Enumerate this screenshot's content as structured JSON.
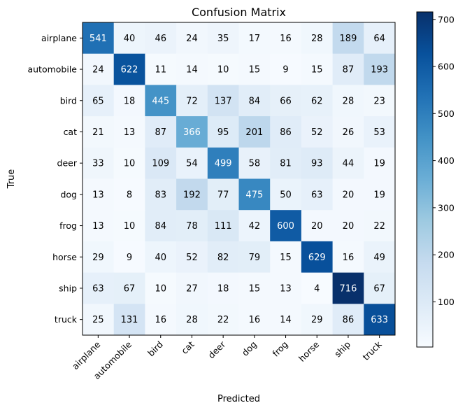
{
  "chart_data": {
    "type": "heatmap",
    "title": "Confusion Matrix",
    "xlabel": "Predicted",
    "ylabel": "True",
    "x_categories": [
      "airplane",
      "automobile",
      "bird",
      "cat",
      "deer",
      "dog",
      "frog",
      "horse",
      "ship",
      "truck"
    ],
    "y_categories": [
      "airplane",
      "automobile",
      "bird",
      "cat",
      "deer",
      "dog",
      "frog",
      "horse",
      "ship",
      "truck"
    ],
    "values": [
      [
        541,
        40,
        46,
        24,
        35,
        17,
        16,
        28,
        189,
        64
      ],
      [
        24,
        622,
        11,
        14,
        10,
        15,
        9,
        15,
        87,
        193
      ],
      [
        65,
        18,
        445,
        72,
        137,
        84,
        66,
        62,
        28,
        23
      ],
      [
        21,
        13,
        87,
        366,
        95,
        201,
        86,
        52,
        26,
        53
      ],
      [
        33,
        10,
        109,
        54,
        499,
        58,
        81,
        93,
        44,
        19
      ],
      [
        13,
        8,
        83,
        192,
        77,
        475,
        50,
        63,
        20,
        19
      ],
      [
        13,
        10,
        84,
        78,
        111,
        42,
        600,
        20,
        20,
        22
      ],
      [
        29,
        9,
        40,
        52,
        82,
        79,
        15,
        629,
        16,
        49
      ],
      [
        63,
        67,
        10,
        27,
        18,
        15,
        13,
        4,
        716,
        67
      ],
      [
        25,
        131,
        16,
        28,
        22,
        16,
        14,
        29,
        86,
        633
      ]
    ],
    "colormap": "Blues",
    "color_min": 4,
    "color_max": 716,
    "colorbar_ticks": [
      100,
      200,
      300,
      400,
      500,
      600,
      700
    ],
    "grid": false,
    "x_tick_rotation_deg": 45
  }
}
